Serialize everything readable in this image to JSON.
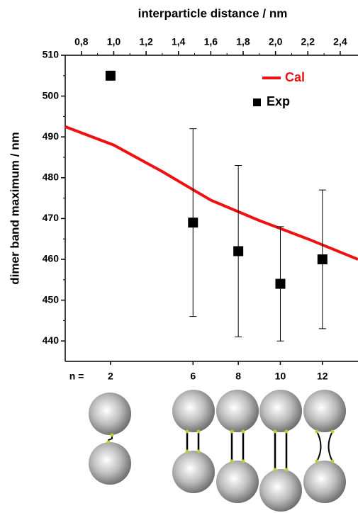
{
  "chart_data": {
    "type": "scatter",
    "xlabel": "interparticle distance / nm",
    "ylabel": "dimer band maximum / nm",
    "xlim": [
      0.7,
      2.51
    ],
    "ylim": [
      435,
      510
    ],
    "xticks": [
      {
        "value": 0.8,
        "label": "0,8"
      },
      {
        "value": 1.0,
        "label": "1,0"
      },
      {
        "value": 1.2,
        "label": "1,2"
      },
      {
        "value": 1.4,
        "label": "1,4"
      },
      {
        "value": 1.6,
        "label": "1,6"
      },
      {
        "value": 1.8,
        "label": "1,8"
      },
      {
        "value": 2.0,
        "label": "2,0"
      },
      {
        "value": 2.2,
        "label": "2,2"
      },
      {
        "value": 2.4,
        "label": "2,4"
      }
    ],
    "yticks": [
      440,
      450,
      460,
      470,
      480,
      490,
      500,
      510
    ],
    "x2label": "n =",
    "x2ticks": [
      {
        "value": 0.98,
        "label": "2"
      },
      {
        "value": 1.49,
        "label": "6"
      },
      {
        "value": 1.77,
        "label": "8"
      },
      {
        "value": 2.03,
        "label": "10"
      },
      {
        "value": 2.29,
        "label": "12"
      }
    ],
    "legend": "upper right",
    "series": [
      {
        "name": "Cal",
        "kind": "line",
        "color": "#ee1111",
        "x": [
          0.7,
          1.0,
          1.3,
          1.6,
          1.9,
          2.2,
          2.51
        ],
        "values": [
          492.5,
          488,
          481.5,
          474.5,
          469.5,
          465,
          460
        ]
      },
      {
        "name": "Exp",
        "kind": "scatter",
        "color": "#000000",
        "x": [
          0.98,
          1.49,
          1.77,
          2.03,
          2.29
        ],
        "values": [
          505,
          469,
          462,
          454,
          460
        ],
        "errors": [
          null,
          23,
          21,
          14,
          17
        ]
      }
    ]
  }
}
